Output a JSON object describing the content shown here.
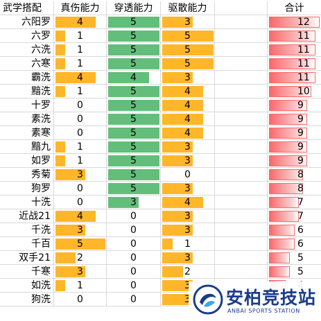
{
  "headers": [
    "武学搭配",
    "真伤能力",
    "穿透能力",
    "驱散能力",
    "",
    "合计"
  ],
  "rows": [
    {
      "name": "六阳罗",
      "zhenshang": 4,
      "chuantou": 5,
      "qusan": 3,
      "total": 12
    },
    {
      "name": "六罗",
      "zhenshang": 1,
      "chuantou": 5,
      "qusan": 5,
      "total": 11
    },
    {
      "name": "六洗",
      "zhenshang": 1,
      "chuantou": 5,
      "qusan": 5,
      "total": 11
    },
    {
      "name": "六寒",
      "zhenshang": 1,
      "chuantou": 5,
      "qusan": 5,
      "total": 11
    },
    {
      "name": "霸洗",
      "zhenshang": 4,
      "chuantou": 4,
      "qusan": 3,
      "total": 11
    },
    {
      "name": "黯洗",
      "zhenshang": 1,
      "chuantou": 5,
      "qusan": 4,
      "total": 10
    },
    {
      "name": "十罗",
      "zhenshang": 0,
      "chuantou": 5,
      "qusan": 4,
      "total": 9
    },
    {
      "name": "素洗",
      "zhenshang": 0,
      "chuantou": 5,
      "qusan": 4,
      "total": 9
    },
    {
      "name": "素寒",
      "zhenshang": 0,
      "chuantou": 5,
      "qusan": 4,
      "total": 9
    },
    {
      "name": "黯九",
      "zhenshang": 1,
      "chuantou": 5,
      "qusan": 3,
      "total": 9
    },
    {
      "name": "如罗",
      "zhenshang": 1,
      "chuantou": 5,
      "qusan": 3,
      "total": 9
    },
    {
      "name": "秀菊",
      "zhenshang": 3,
      "chuantou": 5,
      "qusan": 0,
      "total": 8
    },
    {
      "name": "狗罗",
      "zhenshang": 0,
      "chuantou": 5,
      "qusan": 3,
      "total": 8
    },
    {
      "name": "十洗",
      "zhenshang": 0,
      "chuantou": 3,
      "qusan": 4,
      "total": 7
    },
    {
      "name": "近战21",
      "zhenshang": 4,
      "chuantou": 0,
      "qusan": 3,
      "total": 7
    },
    {
      "name": "千洗",
      "zhenshang": 3,
      "chuantou": 0,
      "qusan": 3,
      "total": 6
    },
    {
      "name": "千百",
      "zhenshang": 5,
      "chuantou": 0,
      "qusan": 1,
      "total": 6
    },
    {
      "name": "双手21",
      "zhenshang": 2,
      "chuantou": 0,
      "qusan": 3,
      "total": 5
    },
    {
      "name": "千寒",
      "zhenshang": 3,
      "chuantou": 0,
      "qusan": 2,
      "total": 5
    },
    {
      "name": "如洗",
      "zhenshang": 1,
      "chuantou": 0,
      "qusan": 3,
      "total": 4
    },
    {
      "name": "狗洗",
      "zhenshang": 0,
      "chuantou": 0,
      "qusan": 3,
      "total": 3
    }
  ],
  "colors": {
    "orange": "#ffb628",
    "green": "#63be7b",
    "red": "#f8696b"
  },
  "watermark": {
    "brand": "安柏竞技站",
    "sub": "ANBAI SPORTS STATION",
    "icon": "anbai-logo-icon"
  }
}
